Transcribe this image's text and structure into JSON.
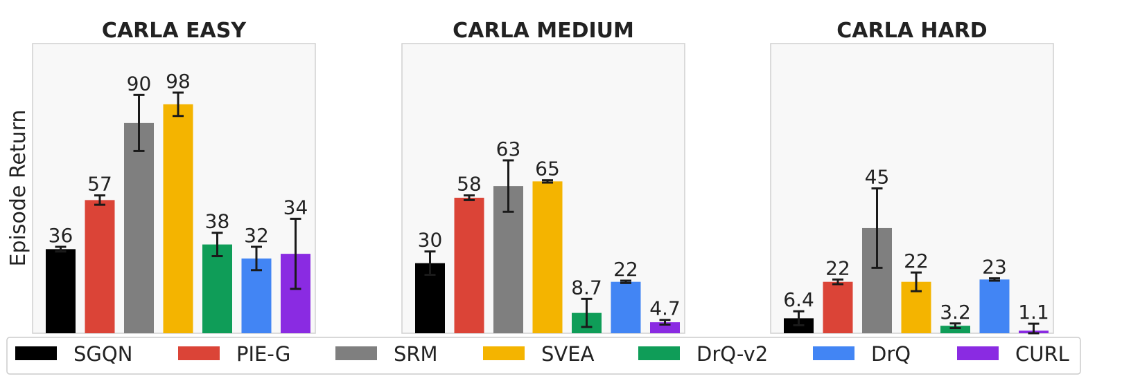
{
  "chart_data": [
    {
      "type": "bar",
      "title": "CARLA EASY",
      "ylabel": "Episode Return",
      "categories": [
        "SGQN",
        "PIE-G",
        "SRM",
        "SVEA",
        "DrQ-v2",
        "DrQ",
        "CURL"
      ],
      "values": [
        36,
        57,
        90,
        98,
        38,
        32,
        34
      ],
      "value_labels": [
        "36",
        "57",
        "90",
        "98",
        "38",
        "32",
        "34"
      ],
      "error": [
        1,
        2,
        12,
        5,
        5,
        5,
        15
      ],
      "ylim": [
        0,
        124
      ]
    },
    {
      "type": "bar",
      "title": "CARLA MEDIUM",
      "categories": [
        "SGQN",
        "PIE-G",
        "SRM",
        "SVEA",
        "DrQ-v2",
        "DrQ",
        "CURL"
      ],
      "values": [
        30,
        58,
        63,
        65,
        8.7,
        22,
        4.7
      ],
      "value_labels": [
        "30",
        "58",
        "63",
        "65",
        "8.7",
        "22",
        "4.7"
      ],
      "error": [
        5,
        1,
        11,
        0.5,
        6,
        0.5,
        1
      ],
      "ylim": [
        0,
        124
      ]
    },
    {
      "type": "bar",
      "title": "CARLA HARD",
      "categories": [
        "SGQN",
        "PIE-G",
        "SRM",
        "SVEA",
        "DrQ-v2",
        "DrQ",
        "CURL"
      ],
      "values": [
        6.4,
        22,
        45,
        22,
        3.2,
        23,
        1.1
      ],
      "value_labels": [
        "6.4",
        "22",
        "45",
        "22",
        "3.2",
        "23",
        "1.1"
      ],
      "error": [
        3,
        1,
        17,
        4,
        1,
        0.5,
        3
      ],
      "ylim": [
        0,
        124
      ]
    }
  ],
  "legend": {
    "placement": "bottom",
    "items": [
      {
        "name": "SGQN",
        "color": "#000000"
      },
      {
        "name": "PIE-G",
        "color": "#db4437"
      },
      {
        "name": "SRM",
        "color": "#7f7f7f"
      },
      {
        "name": "SVEA",
        "color": "#f4b400"
      },
      {
        "name": "DrQ-v2",
        "color": "#0f9d58"
      },
      {
        "name": "DrQ",
        "color": "#4285f4"
      },
      {
        "name": "CURL",
        "color": "#8a2be2"
      }
    ]
  }
}
